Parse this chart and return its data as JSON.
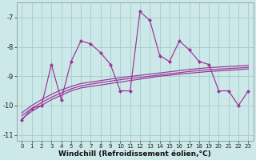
{
  "xlabel": "Windchill (Refroidissement éolien,°C)",
  "bg_color": "#cce8e8",
  "grid_color": "#aacfcf",
  "line_color": "#993399",
  "x": [
    0,
    1,
    2,
    3,
    4,
    5,
    6,
    7,
    8,
    9,
    10,
    11,
    12,
    13,
    14,
    15,
    16,
    17,
    18,
    19,
    20,
    21,
    22,
    23
  ],
  "y_main": [
    -10.5,
    -10.1,
    -10.0,
    -8.6,
    -9.8,
    -8.5,
    -7.8,
    -7.9,
    -8.2,
    -8.6,
    -9.5,
    -9.5,
    -6.8,
    -7.1,
    -8.3,
    -8.5,
    -7.8,
    -8.1,
    -8.5,
    -8.6,
    -9.5,
    -9.5,
    -10.0,
    -9.5
  ],
  "y_line1": [
    -10.45,
    -10.2,
    -10.0,
    -9.8,
    -9.65,
    -9.5,
    -9.4,
    -9.35,
    -9.3,
    -9.25,
    -9.2,
    -9.15,
    -9.1,
    -9.05,
    -9.0,
    -8.97,
    -8.93,
    -8.9,
    -8.87,
    -8.84,
    -8.82,
    -8.8,
    -8.78,
    -8.75
  ],
  "y_line2": [
    -10.35,
    -10.1,
    -9.9,
    -9.72,
    -9.57,
    -9.43,
    -9.33,
    -9.27,
    -9.22,
    -9.17,
    -9.12,
    -9.08,
    -9.04,
    -9.0,
    -8.96,
    -8.92,
    -8.88,
    -8.84,
    -8.81,
    -8.78,
    -8.76,
    -8.74,
    -8.72,
    -8.7
  ],
  "y_line3": [
    -10.25,
    -10.0,
    -9.8,
    -9.62,
    -9.47,
    -9.35,
    -9.25,
    -9.2,
    -9.15,
    -9.1,
    -9.05,
    -9.01,
    -8.97,
    -8.93,
    -8.89,
    -8.85,
    -8.81,
    -8.77,
    -8.74,
    -8.71,
    -8.69,
    -8.67,
    -8.65,
    -8.63
  ],
  "ylim": [
    -11.2,
    -6.5
  ],
  "xlim": [
    -0.5,
    23.5
  ],
  "yticks": [
    -11,
    -10,
    -9,
    -8,
    -7
  ],
  "xticks": [
    0,
    1,
    2,
    3,
    4,
    5,
    6,
    7,
    8,
    9,
    10,
    11,
    12,
    13,
    14,
    15,
    16,
    17,
    18,
    19,
    20,
    21,
    22,
    23
  ],
  "xlabel_fontsize": 6.5,
  "tick_fontsize": 6.0,
  "xtick_fontsize": 5.0
}
